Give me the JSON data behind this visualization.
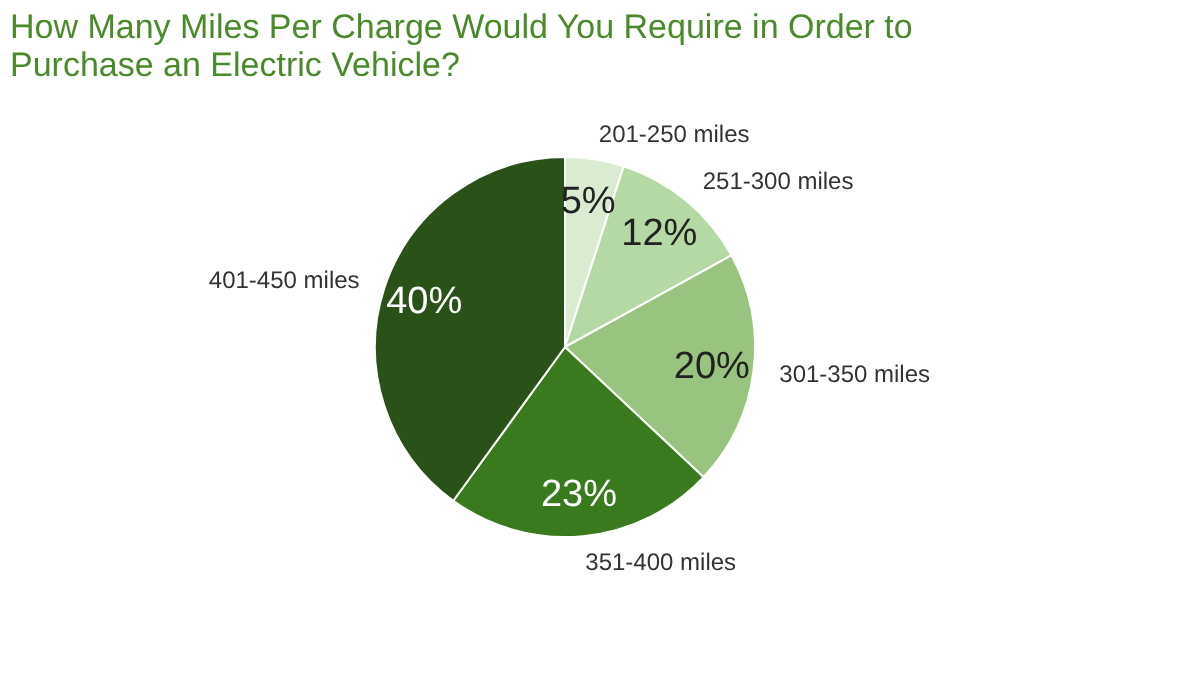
{
  "chart_data": {
    "type": "pie",
    "title": "How Many Miles Per Charge Would You Require in Order to Purchase an Electric Vehicle?",
    "categories": [
      "201-250 miles",
      "251-300 miles",
      "301-350 miles",
      "351-400 miles",
      "401-450 miles"
    ],
    "values": [
      5,
      12,
      20,
      23,
      40
    ],
    "colors": [
      "#d9ebd0",
      "#b5d9a5",
      "#98c47f",
      "#3a7a1f",
      "#2a5218"
    ],
    "value_labels": [
      "5%",
      "12%",
      "20%",
      "23%",
      "40%"
    ],
    "legend": false
  }
}
